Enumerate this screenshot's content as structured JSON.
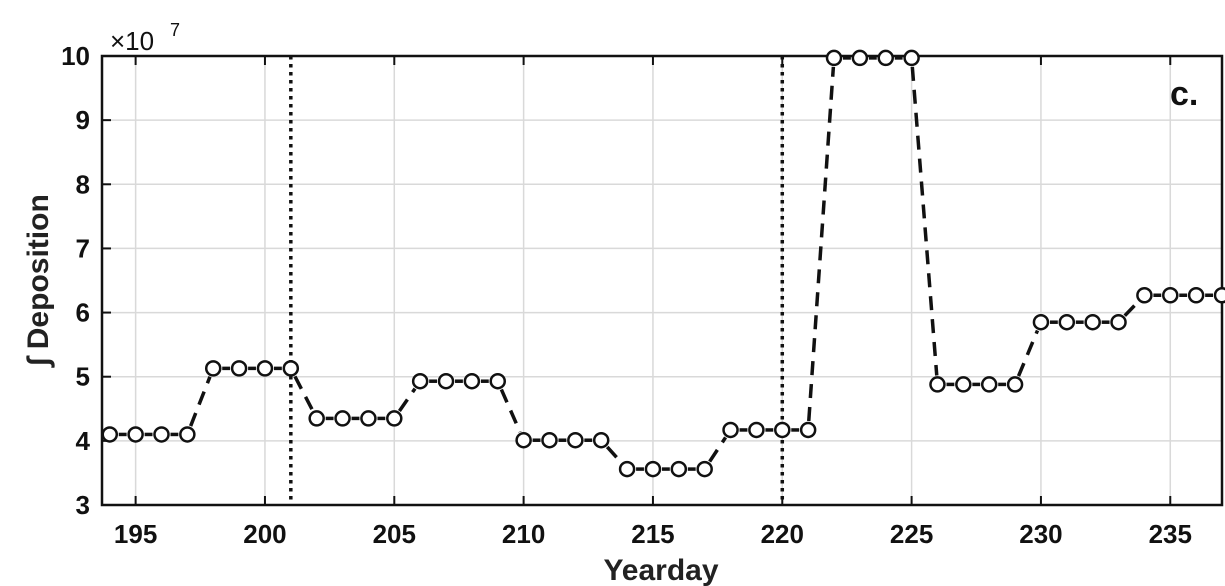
{
  "chart_data": {
    "type": "line",
    "panel_label": "c.",
    "xlabel": "Yearday",
    "ylabel": "∫ Deposition",
    "y_multiplier": "×10",
    "y_multiplier_exponent": "7",
    "xlim": [
      193.7,
      237
    ],
    "ylim": [
      3,
      10
    ],
    "xticks": [
      195,
      200,
      205,
      210,
      215,
      220,
      225,
      230,
      235
    ],
    "yticks": [
      3,
      4,
      5,
      6,
      7,
      8,
      9,
      10
    ],
    "grid": true,
    "vertical_dotted_lines": [
      201,
      220
    ],
    "series": [
      {
        "x": [
          194,
          195,
          196,
          197,
          198,
          199,
          200,
          201,
          202,
          203,
          204,
          205,
          206,
          207,
          208,
          209,
          210,
          211,
          212,
          213,
          214,
          215,
          216,
          217,
          218,
          219,
          220,
          221,
          222,
          223,
          224,
          225,
          226,
          227,
          228,
          229,
          230,
          231,
          232,
          233,
          234,
          235,
          236,
          237
        ],
        "y": [
          4.1,
          4.1,
          4.1,
          4.1,
          5.13,
          5.13,
          5.13,
          5.13,
          4.35,
          4.35,
          4.35,
          4.35,
          4.93,
          4.93,
          4.93,
          4.93,
          4.01,
          4.01,
          4.01,
          4.01,
          3.56,
          3.56,
          3.56,
          3.56,
          4.17,
          4.17,
          4.17,
          4.17,
          9.97,
          9.97,
          9.97,
          9.97,
          4.88,
          4.88,
          4.88,
          4.88,
          5.85,
          5.85,
          5.85,
          5.85,
          6.27,
          6.27,
          6.27,
          6.27
        ]
      }
    ]
  }
}
